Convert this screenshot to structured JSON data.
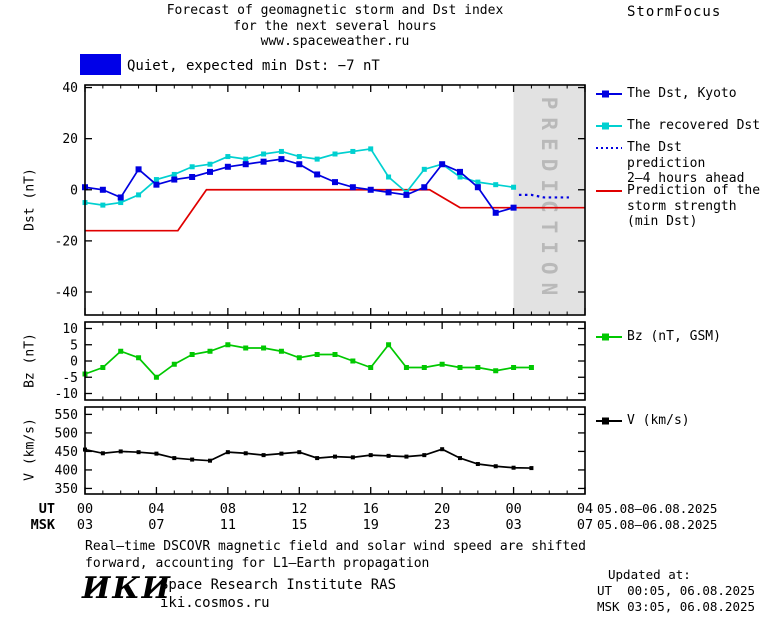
{
  "header": {
    "title_line1": "Forecast of geomagnetic storm and Dst index",
    "title_line2": "for the next several hours",
    "title_line3": "www.spaceweather.ru",
    "brand": "StormFocus"
  },
  "status": {
    "label": "Quiet, expected min Dst: −7 nT",
    "box_color": "#0000e8"
  },
  "legend": {
    "dst_items": [
      {
        "id": "dst-kyoto",
        "swatch": "square-line",
        "color": "#0000e0",
        "lines": [
          "The Dst, Kyoto"
        ]
      },
      {
        "id": "recovered-dst",
        "swatch": "square-line",
        "color": "#00d0d0",
        "lines": [
          "The recovered Dst"
        ]
      },
      {
        "id": "dst-prediction",
        "swatch": "dotted-line",
        "color": "#0000e0",
        "lines": [
          "The Dst prediction",
          "2–4 hours ahead"
        ]
      },
      {
        "id": "storm-strength",
        "swatch": "solid-line",
        "color": "#e00000",
        "lines": [
          "Prediction of the",
          "storm strength",
          "(min Dst)"
        ]
      }
    ],
    "bz_item": {
      "id": "bz",
      "swatch": "square-line",
      "color": "#00c800",
      "lines": [
        "Bz (nT, GSM)"
      ]
    },
    "v_item": {
      "id": "v",
      "swatch": "square-line",
      "color": "#000000",
      "lines": [
        "V (km/s)"
      ]
    }
  },
  "prediction_band": {
    "label": "PREDICTION",
    "start_hour": 24,
    "end_hour": 28,
    "fill": "#e2e2e2",
    "text_color": "#b9b9b9"
  },
  "x_axis": {
    "ut_label": "UT",
    "msk_label": "MSK",
    "ut_ticks": [
      "00",
      "04",
      "08",
      "12",
      "16",
      "20",
      "00",
      "04"
    ],
    "msk_ticks": [
      "03",
      "07",
      "11",
      "15",
      "19",
      "23",
      "03",
      "07"
    ],
    "ut_date_range": "05.08–06.08.2025",
    "msk_date_range": "05.08–06.08.2025"
  },
  "footer": {
    "note_line1": "Real–time DSCOVR magnetic field and solar wind speed are shifted",
    "note_line2": "forward, accounting for L1–Earth propagation",
    "logo": "ИКИ",
    "institute": "Space Research Institute RAS",
    "site": "iki.cosmos.ru",
    "updated_label": "Updated at:",
    "updated_ut": "UT  00:05, 06.08.2025",
    "updated_msk": "MSK 03:05, 06.08.2025"
  },
  "chart_data": [
    {
      "type": "line",
      "name": "dst",
      "ylabel": "Dst (nT)",
      "ylim": [
        -49,
        41
      ],
      "yticks": [
        40,
        20,
        0,
        -20,
        -40
      ],
      "xlim": [
        0,
        28
      ],
      "xticks": [
        0,
        4,
        8,
        12,
        16,
        20,
        24,
        28
      ],
      "series": [
        {
          "id": "dst-kyoto",
          "name": "The Dst, Kyoto",
          "color": "#0000e0",
          "marker": "square",
          "marker_size": 6,
          "x": [
            0,
            1,
            2,
            3,
            4,
            5,
            6,
            7,
            8,
            9,
            10,
            11,
            12,
            13,
            14,
            15,
            16,
            17,
            18,
            19,
            20,
            21,
            22,
            23,
            24
          ],
          "y": [
            1,
            0,
            -3,
            8,
            2,
            4,
            5,
            7,
            9,
            10,
            11,
            12,
            10,
            6,
            3,
            1,
            0,
            -1,
            -2,
            1,
            10,
            7,
            1,
            -9,
            -7
          ]
        },
        {
          "id": "recovered-dst",
          "name": "The recovered Dst",
          "color": "#00d0d0",
          "marker": "square",
          "marker_size": 5,
          "x": [
            0,
            1,
            2,
            3,
            4,
            5,
            6,
            7,
            8,
            9,
            10,
            11,
            12,
            13,
            14,
            15,
            16,
            17,
            18,
            19,
            20,
            21,
            22,
            23,
            24
          ],
          "y": [
            -5,
            -6,
            -5,
            -2,
            4,
            6,
            9,
            10,
            13,
            12,
            14,
            15,
            13,
            12,
            14,
            15,
            16,
            5,
            -1,
            8,
            10,
            5,
            3,
            2,
            1
          ]
        },
        {
          "id": "dst-prediction",
          "name": "The Dst prediction 2–4 hours ahead",
          "color": "#0000e0",
          "style": "dotted",
          "x": [
            24.3,
            25,
            25.7,
            26.4,
            27.1
          ],
          "y": [
            -2,
            -2,
            -3,
            -3,
            -3
          ]
        },
        {
          "id": "storm-strength",
          "name": "Prediction of the storm strength (min Dst)",
          "color": "#e00000",
          "style": "solid",
          "x": [
            0,
            5.2,
            6.8,
            19.3,
            21,
            28
          ],
          "y": [
            -16,
            -16,
            0,
            0,
            -7,
            -7
          ]
        }
      ]
    },
    {
      "type": "line",
      "name": "bz",
      "ylabel": "Bz (nT)",
      "ylim": [
        -12,
        12
      ],
      "yticks": [
        10,
        5,
        0,
        -5,
        -10
      ],
      "xlim": [
        0,
        28
      ],
      "xticks": [
        0,
        4,
        8,
        12,
        16,
        20,
        24,
        28
      ],
      "series": [
        {
          "id": "bz",
          "name": "Bz (nT, GSM)",
          "color": "#00c800",
          "marker": "square",
          "marker_size": 5,
          "x": [
            0,
            1,
            2,
            3,
            4,
            5,
            6,
            7,
            8,
            9,
            10,
            11,
            12,
            13,
            14,
            15,
            16,
            17,
            18,
            19,
            20,
            21,
            22,
            23,
            24,
            25
          ],
          "y": [
            -4,
            -2,
            3,
            1,
            -5,
            -1,
            2,
            3,
            5,
            4,
            4,
            3,
            1,
            2,
            2,
            0,
            -2,
            5,
            -2,
            -2,
            -1,
            -2,
            -2,
            -3,
            -2,
            -2
          ]
        }
      ]
    },
    {
      "type": "line",
      "name": "v",
      "ylabel": "V (km/s)",
      "ylim": [
        335,
        570
      ],
      "yticks": [
        550,
        500,
        450,
        400,
        350
      ],
      "xlim": [
        0,
        28
      ],
      "xticks": [
        0,
        4,
        8,
        12,
        16,
        20,
        24,
        28
      ],
      "series": [
        {
          "id": "v",
          "name": "V (km/s)",
          "color": "#000000",
          "marker": "square",
          "marker_size": 4,
          "x": [
            0,
            1,
            2,
            3,
            4,
            5,
            6,
            7,
            8,
            9,
            10,
            11,
            12,
            13,
            14,
            15,
            16,
            17,
            18,
            19,
            20,
            21,
            22,
            23,
            24,
            25
          ],
          "y": [
            455,
            445,
            450,
            448,
            444,
            432,
            428,
            425,
            448,
            445,
            440,
            444,
            448,
            432,
            436,
            434,
            440,
            438,
            436,
            440,
            456,
            432,
            416,
            410,
            406,
            405
          ]
        }
      ]
    }
  ]
}
